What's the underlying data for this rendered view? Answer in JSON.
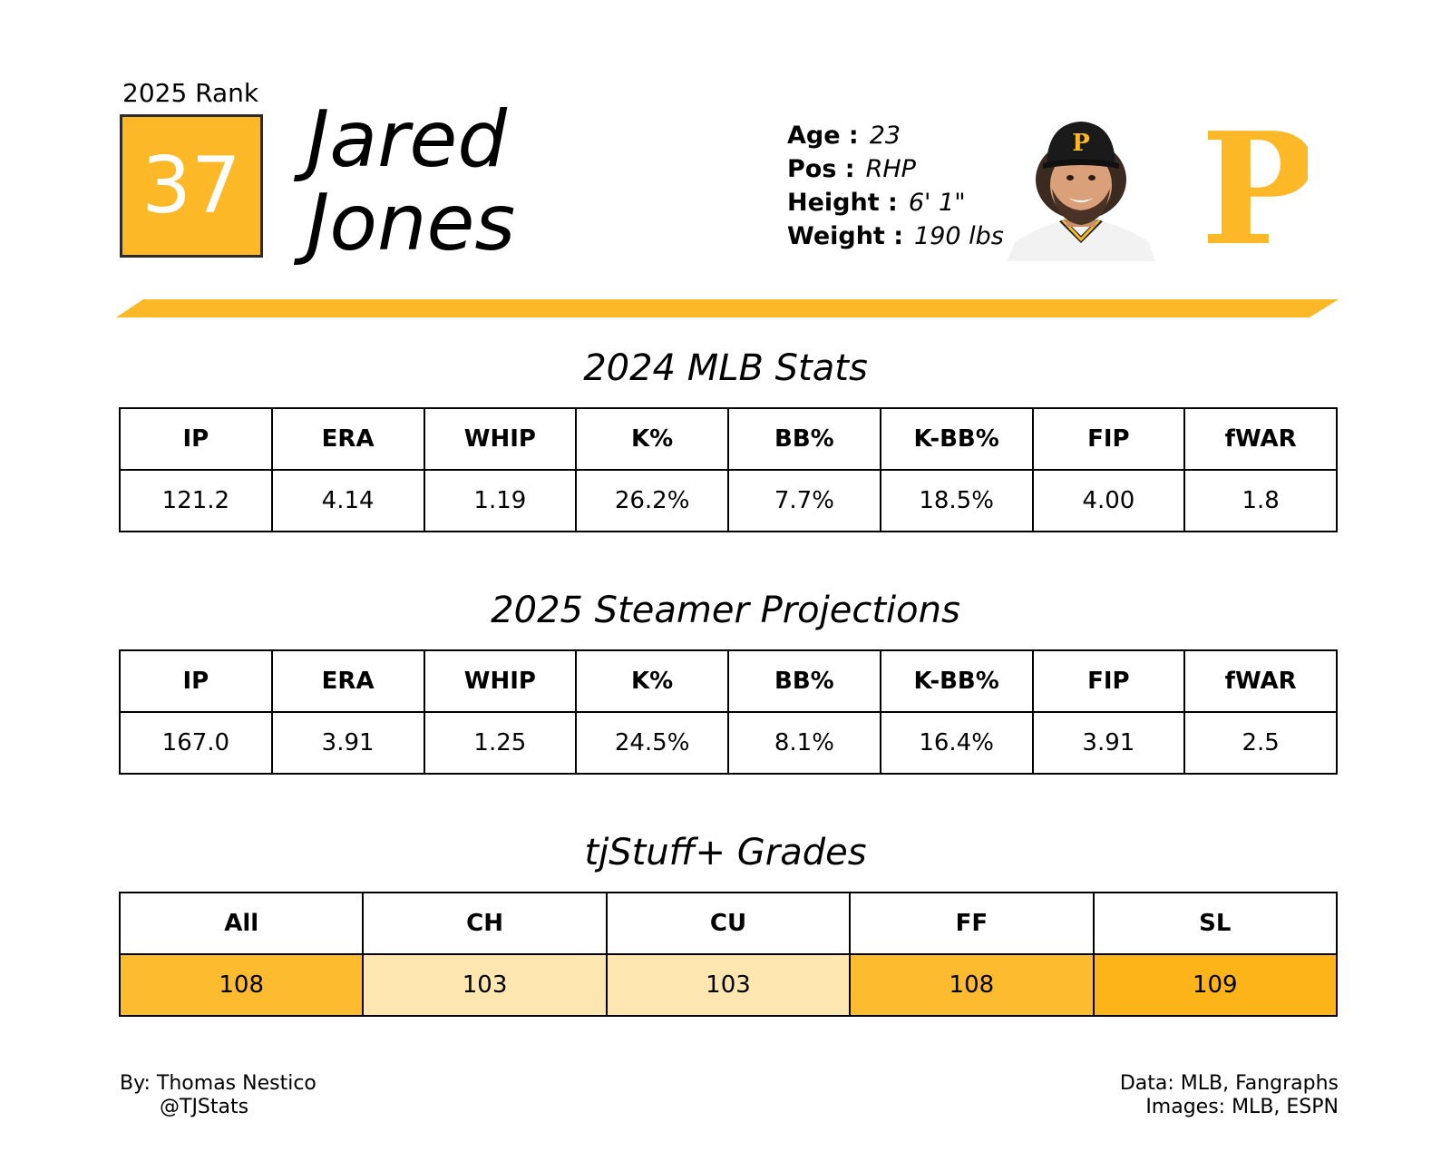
{
  "header": {
    "rank_caption": "2025 Rank",
    "rank": "37",
    "first_name": "Jared",
    "last_name": "Jones",
    "team_logo_letter": "P"
  },
  "info": [
    {
      "label": "Age :",
      "value": "23"
    },
    {
      "label": "Pos :",
      "value": "RHP"
    },
    {
      "label": "Height :",
      "value": "6' 1\""
    },
    {
      "label": "Weight :",
      "value": "190 lbs"
    }
  ],
  "sections": {
    "mlb_title": "2024 MLB Stats",
    "steamer_title": "2025 Steamer Projections",
    "tjstuff_title": "tjStuff+ Grades"
  },
  "mlb_stats": {
    "headers": [
      "IP",
      "ERA",
      "WHIP",
      "K%",
      "BB%",
      "K-BB%",
      "FIP",
      "fWAR"
    ],
    "values": [
      "121.2",
      "4.14",
      "1.19",
      "26.2%",
      "7.7%",
      "18.5%",
      "4.00",
      "1.8"
    ]
  },
  "steamer": {
    "headers": [
      "IP",
      "ERA",
      "WHIP",
      "K%",
      "BB%",
      "K-BB%",
      "FIP",
      "fWAR"
    ],
    "values": [
      "167.0",
      "3.91",
      "1.25",
      "24.5%",
      "8.1%",
      "16.4%",
      "3.91",
      "2.5"
    ]
  },
  "tjstuff": {
    "headers": [
      "All",
      "CH",
      "CU",
      "FF",
      "SL"
    ],
    "values": [
      "108",
      "103",
      "103",
      "108",
      "109"
    ],
    "cell_colors": [
      "#fdbb2f",
      "#fee6b0",
      "#fee6b0",
      "#fdbb2f",
      "#fdb418"
    ]
  },
  "colors": {
    "accent": "#fdb827",
    "logo": "#fdb827",
    "border": "#000000"
  },
  "footer": {
    "author": "By: Thomas Nestico",
    "handle": "@TJStats",
    "data_source": "Data: MLB, Fangraphs",
    "image_source": "Images: MLB, ESPN"
  }
}
